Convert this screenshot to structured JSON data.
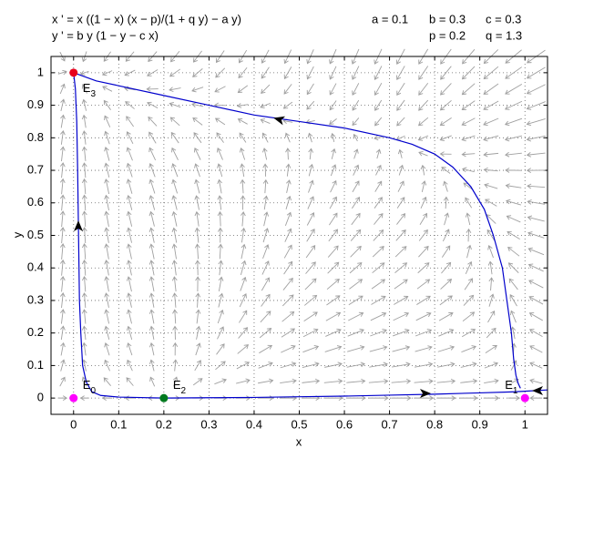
{
  "chart_data": {
    "type": "phase",
    "equations": [
      "x ' = x ((1 − x) (x − p)/(1 + q y) − a y)",
      "y ' = b y (1 − y − c x)"
    ],
    "parameters": [
      {
        "name": "a",
        "value": 0.1,
        "label": "a = 0.1"
      },
      {
        "name": "b",
        "value": 0.3,
        "label": "b = 0.3"
      },
      {
        "name": "c",
        "value": 0.3,
        "label": "c = 0.3"
      },
      {
        "name": "p",
        "value": 0.2,
        "label": "p = 0.2"
      },
      {
        "name": "q",
        "value": 1.3,
        "label": "q = 1.3"
      }
    ],
    "xlabel": "x",
    "ylabel": "y",
    "xlim": [
      -0.05,
      1.05
    ],
    "ylim": [
      -0.05,
      1.05
    ],
    "xticks": [
      0,
      0.1,
      0.2,
      0.3,
      0.4,
      0.5,
      0.6,
      0.7,
      0.8,
      0.9,
      1
    ],
    "yticks": [
      0,
      0.1,
      0.2,
      0.3,
      0.4,
      0.5,
      0.6,
      0.7,
      0.8,
      0.9,
      1
    ],
    "grid": true,
    "field_color": "#a0a0a0",
    "series": [
      {
        "color": "#0000cc",
        "x": [
          0,
          0.05,
          0.1,
          0.2,
          0.3,
          0.4,
          0.5,
          0.6,
          0.7,
          0.75,
          0.8,
          0.84,
          0.88,
          0.91,
          0.93,
          0.95,
          0.96,
          0.97,
          0.975,
          0.98,
          0.985,
          0.99
        ],
        "y": [
          1,
          0.975,
          0.96,
          0.93,
          0.9,
          0.87,
          0.85,
          0.83,
          0.8,
          0.78,
          0.75,
          0.71,
          0.65,
          0.58,
          0.5,
          0.4,
          0.3,
          0.2,
          0.12,
          0.07,
          0.045,
          0.03
        ]
      },
      {
        "color": "#0000cc",
        "x": [
          0.2,
          0.1,
          0.06,
          0.04,
          0.028,
          0.02,
          0.016,
          0.013,
          0.011,
          0.009,
          0.007,
          0.004,
          0
        ],
        "y": [
          0,
          0.003,
          0.008,
          0.02,
          0.05,
          0.1,
          0.2,
          0.3,
          0.5,
          0.7,
          0.85,
          0.95,
          1
        ]
      },
      {
        "color": "#0000cc",
        "x": [
          0.2,
          0.3,
          0.4,
          0.5,
          0.6,
          0.7,
          0.8,
          0.9,
          0.97,
          1,
          1.05
        ],
        "y": [
          0,
          0.001,
          0.002,
          0.004,
          0.006,
          0.009,
          0.012,
          0.016,
          0.019,
          0.021,
          0.025
        ]
      }
    ],
    "points": [
      {
        "x": 0,
        "y": 0,
        "label": "E",
        "subscript": "0",
        "color": "#ff00ff"
      },
      {
        "x": 1,
        "y": 0,
        "label": "E",
        "subscript": "1",
        "color": "#ff00ff"
      },
      {
        "x": 0.2,
        "y": 0,
        "label": "E",
        "subscript": "2",
        "color": "#007a1f"
      },
      {
        "x": 0,
        "y": 1,
        "label": "E",
        "subscript": "3",
        "color": "#e8001c"
      }
    ]
  }
}
